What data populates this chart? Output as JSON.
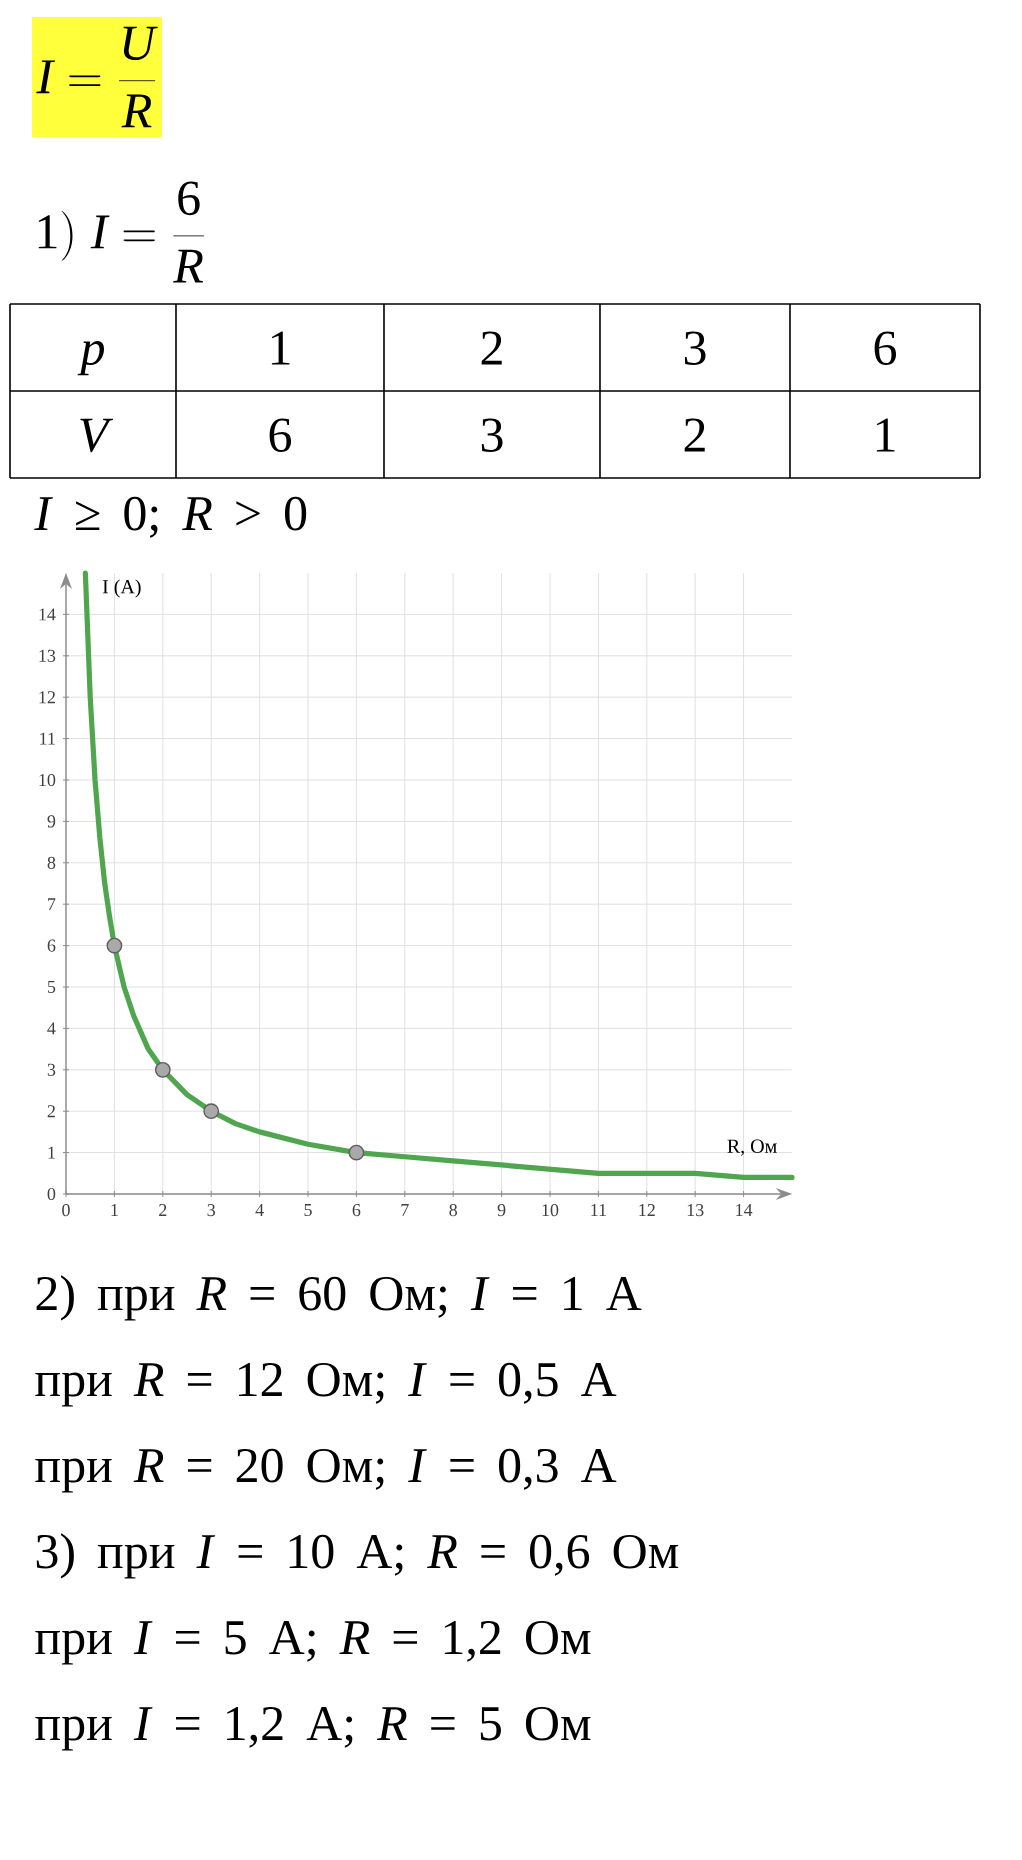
{
  "chart_data": {
    "type": "line",
    "title": "I=\\frac{U}{R}",
    "xlabel": "R, Ом",
    "ylabel": "I (A)",
    "xlim": [
      0,
      15
    ],
    "ylim": [
      0,
      15
    ],
    "xticks": [
      0,
      1,
      2,
      3,
      4,
      5,
      6,
      7,
      8,
      9,
      10,
      11,
      12,
      13,
      14
    ],
    "yticks": [
      0,
      1,
      2,
      3,
      4,
      5,
      6,
      7,
      8,
      9,
      10,
      11,
      12,
      13,
      14
    ],
    "grid": true,
    "series": [
      {
        "color": "#4fa64f",
        "x": [
          0.4,
          0.5,
          0.6,
          0.7,
          0.8,
          0.9,
          1,
          1.2,
          1.4,
          1.7,
          2,
          2.5,
          3,
          3.5,
          4,
          5,
          6,
          7,
          8,
          9,
          10,
          11,
          12,
          13,
          14,
          15
        ],
        "values": [
          15,
          12,
          10,
          8.6,
          7.5,
          6.7,
          6,
          5,
          4.3,
          3.5,
          3,
          2.4,
          2,
          1.7,
          1.5,
          1.2,
          1,
          0.9,
          0.8,
          0.7,
          0.6,
          0.5,
          0.5,
          0.5,
          0.4,
          0.4
        ]
      },
      {
        "type": "scatter",
        "color": "#a9a9a9",
        "marker": "circle",
        "x": [
          1,
          2,
          3,
          6
        ],
        "values": [
          6,
          3,
          2,
          1
        ]
      }
    ],
    "annotations": [
      "1)\\;I=\\frac{6}{R}",
      "p",
      "1",
      "2",
      "3",
      "6",
      "V",
      "6",
      "3",
      "2",
      "1",
      "*I* ≥ 0;  *R* > 0",
      "2) при *R* = 60 Ом;  *I* = 1 А",
      "при *R* = 12 Ом;  *I* = 0,5 А",
      "при *R* = 20 Ом;  *I* = 0,3 А",
      "3) при *I* = 10 А;  *R* = 0,6 Ом",
      "при *I* = 5 А;  *R* = 1,2 Ом",
      "при *I* = 1,2 А;  *R* = 5 Ом"
    ]
  }
}
